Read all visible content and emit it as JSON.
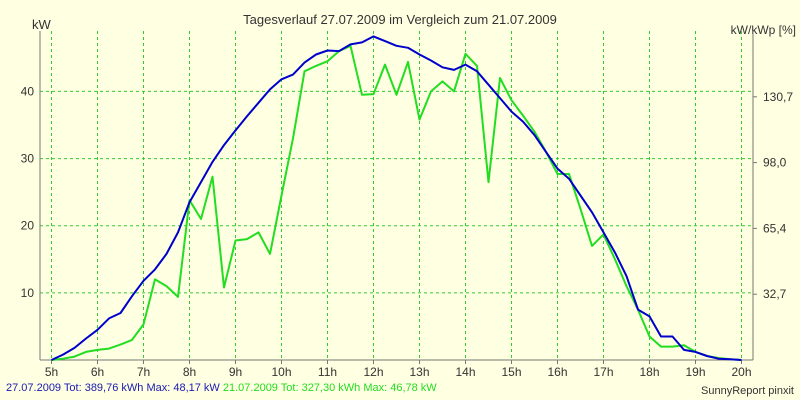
{
  "chart_data": {
    "type": "line",
    "title": "Tagesverlauf 27.07.2009 im Vergleich zum 21.07.2009",
    "ylabel_left": "kW",
    "ylabel_right": "kW/kWp [%]",
    "xlim": [
      4.75,
      20.25
    ],
    "ylim": [
      0,
      49
    ],
    "x_ticks": [
      {
        "value": 5,
        "label": "5h"
      },
      {
        "value": 6,
        "label": "6h"
      },
      {
        "value": 7,
        "label": "7h"
      },
      {
        "value": 8,
        "label": "8h"
      },
      {
        "value": 9,
        "label": "9h"
      },
      {
        "value": 10,
        "label": "10h"
      },
      {
        "value": 11,
        "label": "11h"
      },
      {
        "value": 12,
        "label": "12h"
      },
      {
        "value": 13,
        "label": "13h"
      },
      {
        "value": 14,
        "label": "14h"
      },
      {
        "value": 15,
        "label": "15h"
      },
      {
        "value": 16,
        "label": "16h"
      },
      {
        "value": 17,
        "label": "17h"
      },
      {
        "value": 18,
        "label": "18h"
      },
      {
        "value": 19,
        "label": "19h"
      },
      {
        "value": 20,
        "label": "20h"
      }
    ],
    "y_ticks_left": [
      {
        "value": 10,
        "label": "10"
      },
      {
        "value": 20,
        "label": "20"
      },
      {
        "value": 30,
        "label": "30"
      },
      {
        "value": 40,
        "label": "40"
      }
    ],
    "y_ticks_right": [
      {
        "value": 9.8,
        "label": "32,7"
      },
      {
        "value": 19.6,
        "label": "65,4"
      },
      {
        "value": 29.4,
        "label": "98,0"
      },
      {
        "value": 39.2,
        "label": "130,7"
      }
    ],
    "colors": {
      "background": "#ffffe1",
      "grid": "#33cc33",
      "axis": "#777777",
      "series1": "#0000cc",
      "series2": "#22dd22"
    },
    "series": [
      {
        "name": "27.07.2009",
        "color": "#0000cc",
        "x": [
          5.0,
          5.25,
          5.5,
          5.75,
          6.0,
          6.25,
          6.5,
          6.75,
          7.0,
          7.25,
          7.5,
          7.75,
          8.0,
          8.25,
          8.5,
          8.75,
          9.0,
          9.25,
          9.5,
          9.75,
          10.0,
          10.25,
          10.5,
          10.75,
          11.0,
          11.25,
          11.5,
          11.75,
          12.0,
          12.25,
          12.5,
          12.75,
          13.0,
          13.25,
          13.5,
          13.75,
          14.0,
          14.25,
          14.5,
          14.75,
          15.0,
          15.25,
          15.5,
          15.75,
          16.0,
          16.25,
          16.5,
          16.75,
          17.0,
          17.25,
          17.5,
          17.75,
          18.0,
          18.25,
          18.5,
          18.75,
          19.0,
          19.25,
          19.5,
          19.75,
          20.0
        ],
        "y": [
          0.0,
          0.8,
          1.8,
          3.2,
          4.5,
          6.2,
          7.0,
          9.5,
          11.8,
          13.5,
          15.8,
          19.0,
          23.5,
          26.5,
          29.5,
          32.0,
          34.2,
          36.3,
          38.3,
          40.3,
          41.8,
          42.5,
          44.3,
          45.5,
          46.1,
          46.0,
          47.0,
          47.3,
          48.2,
          47.5,
          46.8,
          46.5,
          45.5,
          44.6,
          43.6,
          43.2,
          44.0,
          43.0,
          41.0,
          39.0,
          37.0,
          35.5,
          33.5,
          31.0,
          28.5,
          27.0,
          24.5,
          22.0,
          19.0,
          16.0,
          12.5,
          7.5,
          6.5,
          3.5,
          3.5,
          1.5,
          1.2,
          0.6,
          0.2,
          0.1,
          0.0
        ]
      },
      {
        "name": "21.07.2009",
        "color": "#22dd22",
        "x": [
          5.0,
          5.25,
          5.5,
          5.75,
          6.0,
          6.25,
          6.5,
          6.75,
          7.0,
          7.25,
          7.5,
          7.75,
          8.0,
          8.25,
          8.5,
          8.75,
          9.0,
          9.25,
          9.5,
          9.75,
          10.0,
          10.25,
          10.5,
          10.75,
          11.0,
          11.25,
          11.5,
          11.75,
          12.0,
          12.25,
          12.5,
          12.75,
          13.0,
          13.25,
          13.5,
          13.75,
          14.0,
          14.25,
          14.5,
          14.75,
          15.0,
          15.25,
          15.5,
          15.75,
          16.0,
          16.25,
          16.5,
          16.75,
          17.0,
          17.25,
          17.5,
          17.75,
          18.0,
          18.25,
          18.5,
          18.75,
          19.0,
          19.25,
          19.5,
          19.75,
          20.0
        ],
        "y": [
          0.0,
          0.2,
          0.5,
          1.2,
          1.5,
          1.7,
          2.3,
          3.0,
          5.3,
          12.0,
          11.0,
          9.4,
          23.8,
          21.0,
          27.3,
          10.8,
          17.8,
          18.0,
          19.0,
          15.8,
          24.5,
          33.0,
          43.0,
          43.8,
          44.5,
          46.0,
          46.8,
          39.5,
          39.6,
          44.0,
          39.5,
          44.4,
          35.8,
          40.0,
          41.5,
          40.0,
          45.6,
          43.8,
          26.5,
          42.0,
          38.7,
          36.4,
          34.0,
          31.0,
          27.7,
          27.7,
          22.5,
          17.0,
          18.7,
          15.0,
          11.0,
          7.5,
          3.5,
          2.0,
          2.0,
          2.2,
          1.2,
          0.6,
          0.3,
          0.1,
          0.0
        ]
      }
    ]
  },
  "footer": {
    "series1_text": "27.07.2009 Tot: 389,76 kWh Max: 48,17 kW",
    "series2_text": "21.07.2009 Tot: 327,30 kWh Max: 46,78 kW",
    "credit": "SunnyReport pinxit"
  }
}
